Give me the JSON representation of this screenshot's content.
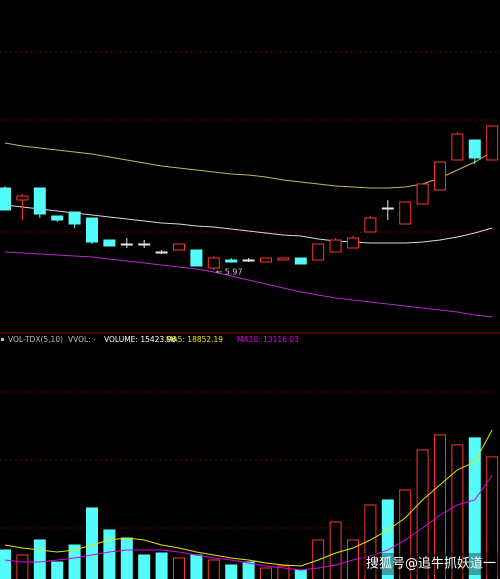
{
  "chart_data": [
    {
      "type": "candlestick",
      "ylim": [
        5.67,
        7.32
      ],
      "up_color": "#ff3232",
      "down_color": "#54fcfc",
      "flat_color": "#e8e8e8",
      "open": [
        6.38,
        6.32,
        6.38,
        6.24,
        6.26,
        6.23,
        6.12,
        6.1,
        6.1,
        6.06,
        6.07,
        6.07,
        5.98,
        6.02,
        6.02,
        6.01,
        6.02,
        6.03,
        6.02,
        6.06,
        6.08,
        6.16,
        6.28,
        6.2,
        6.3,
        6.37,
        6.52,
        6.62,
        6.52
      ],
      "high": [
        6.39,
        6.35,
        6.38,
        6.24,
        6.26,
        6.23,
        6.12,
        6.13,
        6.12,
        6.07,
        6.1,
        6.07,
        6.04,
        6.03,
        6.03,
        6.03,
        6.03,
        6.03,
        6.1,
        6.13,
        6.14,
        6.24,
        6.32,
        6.31,
        6.4,
        6.51,
        6.66,
        6.62,
        6.69
      ],
      "low": [
        6.27,
        6.22,
        6.23,
        6.21,
        6.18,
        6.1,
        6.09,
        6.08,
        6.08,
        6.05,
        6.07,
        5.99,
        5.97,
        6.01,
        6.01,
        6.01,
        6.02,
        6.0,
        6.02,
        6.06,
        6.08,
        6.16,
        6.22,
        6.2,
        6.3,
        6.37,
        6.52,
        6.5,
        6.52
      ],
      "close": [
        6.27,
        6.34,
        6.25,
        6.22,
        6.2,
        6.11,
        6.09,
        6.1,
        6.1,
        6.06,
        6.1,
        5.99,
        6.03,
        6.01,
        6.02,
        6.03,
        6.03,
        6.0,
        6.1,
        6.12,
        6.13,
        6.23,
        6.28,
        6.31,
        6.4,
        6.51,
        6.65,
        6.53,
        6.69
      ],
      "lines": [
        {
          "color": "#c8b450",
          "values": [
            6.605,
            6.59,
            6.58,
            6.57,
            6.56,
            6.55,
            6.535,
            6.52,
            6.505,
            6.49,
            6.48,
            6.47,
            6.46,
            6.45,
            6.445,
            6.435,
            6.42,
            6.41,
            6.4,
            6.39,
            6.385,
            6.38,
            6.38,
            6.385,
            6.4,
            6.43,
            6.47,
            6.51,
            6.56
          ]
        },
        {
          "color": "#d8d8d8",
          "values": [
            6.295,
            6.285,
            6.275,
            6.265,
            6.255,
            6.245,
            6.235,
            6.225,
            6.215,
            6.205,
            6.2,
            6.19,
            6.185,
            6.175,
            6.165,
            6.155,
            6.145,
            6.14,
            6.125,
            6.115,
            6.11,
            6.105,
            6.105,
            6.105,
            6.11,
            6.12,
            6.135,
            6.155,
            6.18
          ]
        },
        {
          "color": "#b428c8",
          "values": [
            6.06,
            6.055,
            6.05,
            6.045,
            6.04,
            6.035,
            6.025,
            6.015,
            6.005,
            5.995,
            5.985,
            5.975,
            5.96,
            5.94,
            5.92,
            5.9,
            5.88,
            5.86,
            5.845,
            5.83,
            5.82,
            5.81,
            5.8,
            5.79,
            5.78,
            5.77,
            5.76,
            5.745,
            5.735
          ]
        }
      ],
      "low_marker": 5.97
    },
    {
      "type": "bar",
      "ylim": [
        0,
        28800
      ],
      "header": [
        {
          "label": "VOL-TDX(5,10)",
          "color": "#bcbcbc"
        },
        {
          "label": "VVOL: -",
          "color": "#bcbcbc"
        },
        {
          "label": "VOLUME:",
          "value": 15423.96,
          "color": "#ffffff"
        },
        {
          "label": "MA5:",
          "value": 18852.19,
          "color": "#e6e600"
        },
        {
          "label": "MA10:",
          "value": 13116.03,
          "color": "#e000e0"
        }
      ],
      "values": [
        3666,
        3034,
        4930,
        2149,
        4298,
        8974,
        6194,
        5182,
        3034,
        3286,
        2654,
        3034,
        2402,
        1770,
        2149,
        1390,
        1643,
        1138,
        4930,
        7205,
        4930,
        9354,
        9986,
        11250,
        16306,
        18202,
        16938,
        17822,
        15423.96
      ],
      "lines": [
        {
          "color": "#e6e600",
          "values": [
            4298,
            3918,
            3666,
            3413,
            3666,
            4298,
            4930,
            5182,
            4930,
            4298,
            3918,
            3413,
            3034,
            2654,
            2402,
            2022,
            1770,
            1643,
            2402,
            3286,
            3918,
            4930,
            6194,
            7710,
            9986,
            11882,
            13778,
            14789,
            18852.19
          ]
        },
        {
          "color": "#e000e0",
          "values": [
            2402,
            2149,
            2149,
            2402,
            2654,
            3034,
            3413,
            3666,
            3666,
            3666,
            3413,
            3034,
            2654,
            2402,
            2022,
            1643,
            1390,
            1138,
            1390,
            1770,
            2402,
            2907,
            3666,
            4930,
            6446,
            8090,
            9354,
            9986,
            13116.03
          ]
        }
      ]
    }
  ],
  "watermark": "搜狐号@追牛抓妖道一"
}
